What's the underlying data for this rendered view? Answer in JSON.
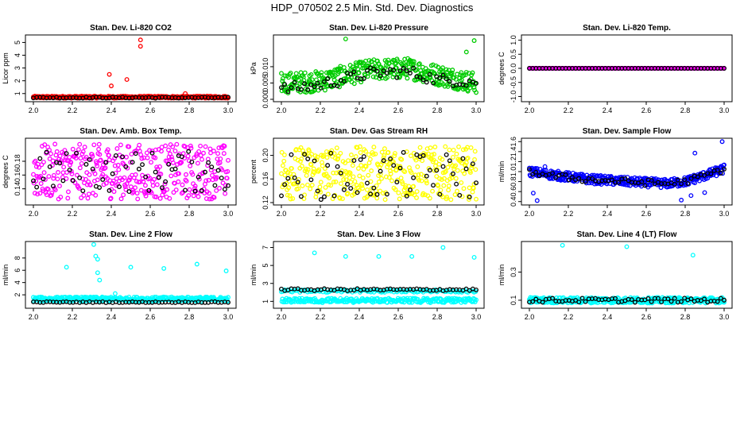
{
  "figure": {
    "title": "HDP_070502  2.5 Min. Std. Dev. Diagnostics"
  },
  "chart_data": [
    {
      "type": "scatter",
      "title": "Stan. Dev. Li-820 CO2",
      "ylabel": "Licor ppm",
      "xlim": [
        2.0,
        3.0
      ],
      "ylim": [
        0.55,
        5.4
      ],
      "xticks": [
        "2.0",
        "2.2",
        "2.4",
        "2.6",
        "2.8",
        "3.0"
      ],
      "yticks": [
        "1",
        "2",
        "3",
        "4",
        "5"
      ],
      "colors": {
        "primary": "#ff0000",
        "secondary": "#000000"
      },
      "primary_base": 0.72,
      "primary_noise": 0.08,
      "secondary_base": 0.68,
      "secondary_noise": 0.04,
      "outliers": [
        {
          "x": 2.39,
          "y": 2.5
        },
        {
          "x": 2.4,
          "y": 1.6
        },
        {
          "x": 2.48,
          "y": 2.1
        },
        {
          "x": 2.55,
          "y": 5.2
        },
        {
          "x": 2.55,
          "y": 4.7
        },
        {
          "x": 2.78,
          "y": 1.0
        }
      ]
    },
    {
      "type": "scatter",
      "title": "Stan. Dev. Li-820 Pressure",
      "ylabel": "kPa",
      "xlim": [
        2.0,
        3.0
      ],
      "ylim": [
        0.0,
        0.019
      ],
      "xticks": [
        "2.0",
        "2.2",
        "2.4",
        "2.6",
        "2.8",
        "3.0"
      ],
      "yticks": [
        "0.000",
        "0.005",
        "0.010"
      ],
      "colors": {
        "primary": "#00cc00",
        "secondary": "#000000"
      },
      "primary_curve": [
        [
          2.0,
          0.005
        ],
        [
          2.2,
          0.0055
        ],
        [
          2.45,
          0.009
        ],
        [
          2.65,
          0.0095
        ],
        [
          2.8,
          0.0075
        ],
        [
          3.0,
          0.005
        ]
      ],
      "primary_noise": 0.0032,
      "secondary_curve": [
        [
          2.0,
          0.003
        ],
        [
          2.2,
          0.0045
        ],
        [
          2.45,
          0.008
        ],
        [
          2.65,
          0.0085
        ],
        [
          2.8,
          0.006
        ],
        [
          3.0,
          0.0055
        ]
      ],
      "secondary_noise": 0.0018,
      "outliers": [
        {
          "x": 2.33,
          "y": 0.0185
        },
        {
          "x": 2.99,
          "y": 0.018
        },
        {
          "x": 2.95,
          "y": 0.0145
        }
      ]
    },
    {
      "type": "scatter",
      "title": "Stan. Dev. Li-820 Temp.",
      "ylabel": "degrees C",
      "xlim": [
        2.0,
        3.0
      ],
      "ylim": [
        -1.1,
        1.1
      ],
      "xticks": [
        "2.0",
        "2.2",
        "2.4",
        "2.6",
        "2.8",
        "3.0"
      ],
      "yticks": [
        "-1.0",
        "-0.5",
        "0.0",
        "0.5",
        "1.0"
      ],
      "colors": {
        "primary": "#ff00ff",
        "secondary": "#000000"
      },
      "primary_base": 0.0,
      "primary_noise": 0.0,
      "secondary_base": 0.0,
      "secondary_noise": 0.0,
      "outliers": []
    },
    {
      "type": "scatter",
      "title": "Stan. Dev. Amb. Box Temp.",
      "ylabel": "degrees C",
      "xlim": [
        2.0,
        3.0
      ],
      "ylim": [
        0.12,
        0.21
      ],
      "xticks": [
        "2.0",
        "2.2",
        "2.4",
        "2.6",
        "2.8",
        "3.0"
      ],
      "yticks": [
        "0.14",
        "0.16",
        "0.18"
      ],
      "colors": {
        "primary": "#ff00ff",
        "secondary": "#000000"
      },
      "primary_base": 0.165,
      "primary_noise": 0.04,
      "secondary_base": 0.165,
      "secondary_noise": 0.03,
      "outliers": []
    },
    {
      "type": "scatter",
      "title": "Stan. Dev. Gas Stream RH",
      "ylabel": "percent",
      "xlim": [
        2.0,
        3.0
      ],
      "ylim": [
        0.12,
        0.225
      ],
      "xticks": [
        "2.0",
        "2.2",
        "2.4",
        "2.6",
        "2.8",
        "3.0"
      ],
      "yticks": [
        "0.12",
        "0.16",
        "0.20"
      ],
      "colors": {
        "primary": "#ffff00",
        "secondary": "#000000"
      },
      "primary_base": 0.17,
      "primary_noise": 0.045,
      "secondary_base": 0.165,
      "secondary_noise": 0.04,
      "outliers": []
    },
    {
      "type": "scatter",
      "title": "Stan. Dev. Sample Flow",
      "ylabel": "ml/min",
      "xlim": [
        2.0,
        3.0
      ],
      "ylim": [
        0.38,
        1.62
      ],
      "xticks": [
        "2.0",
        "2.2",
        "2.4",
        "2.6",
        "2.8",
        "3.0"
      ],
      "yticks": [
        "0.4",
        "0.6",
        "0.8",
        "1.0",
        "1.2",
        "1.4",
        "1.6"
      ],
      "colors": {
        "primary": "#0000ff",
        "secondary": "#000000"
      },
      "primary_curve": [
        [
          2.0,
          1.0
        ],
        [
          2.15,
          0.92
        ],
        [
          2.3,
          0.85
        ],
        [
          2.5,
          0.8
        ],
        [
          2.7,
          0.76
        ],
        [
          2.8,
          0.8
        ],
        [
          2.9,
          0.92
        ],
        [
          3.0,
          1.05
        ]
      ],
      "primary_noise": 0.09,
      "secondary_curve": [
        [
          2.0,
          1.0
        ],
        [
          2.15,
          0.9
        ],
        [
          2.3,
          0.84
        ],
        [
          2.5,
          0.8
        ],
        [
          2.7,
          0.76
        ],
        [
          2.8,
          0.8
        ],
        [
          2.9,
          0.92
        ],
        [
          3.0,
          1.05
        ]
      ],
      "secondary_noise": 0.06,
      "outliers": [
        {
          "x": 2.02,
          "y": 0.57
        },
        {
          "x": 2.04,
          "y": 0.42
        },
        {
          "x": 2.08,
          "y": 1.1
        },
        {
          "x": 2.78,
          "y": 0.43
        },
        {
          "x": 2.83,
          "y": 0.52
        },
        {
          "x": 2.85,
          "y": 1.37
        },
        {
          "x": 2.9,
          "y": 0.58
        },
        {
          "x": 2.99,
          "y": 1.6
        }
      ]
    },
    {
      "type": "scatter",
      "title": "Stan. Dev. Line 2 Flow",
      "ylabel": "ml/min",
      "xlim": [
        2.0,
        3.0
      ],
      "ylim": [
        0.2,
        10.3
      ],
      "xticks": [
        "2.0",
        "2.2",
        "2.4",
        "2.6",
        "2.8",
        "3.0"
      ],
      "yticks": [
        "2",
        "4",
        "6",
        "8"
      ],
      "colors": {
        "primary": "#00ffff",
        "secondary": "#000000"
      },
      "primary_base": 1.3,
      "primary_noise": 0.35,
      "secondary_base": 0.8,
      "secondary_noise": 0.08,
      "outliers": [
        {
          "x": 2.17,
          "y": 6.5
        },
        {
          "x": 2.31,
          "y": 10.2
        },
        {
          "x": 2.32,
          "y": 8.3
        },
        {
          "x": 2.33,
          "y": 7.8
        },
        {
          "x": 2.33,
          "y": 5.6
        },
        {
          "x": 2.34,
          "y": 4.4
        },
        {
          "x": 2.42,
          "y": 2.2
        },
        {
          "x": 2.5,
          "y": 6.5
        },
        {
          "x": 2.67,
          "y": 6.3
        },
        {
          "x": 2.84,
          "y": 7.0
        },
        {
          "x": 2.99,
          "y": 5.9
        }
      ]
    },
    {
      "type": "scatter",
      "title": "Stan. Dev. Line 3 Flow",
      "ylabel": "ml/min",
      "xlim": [
        2.0,
        3.0
      ],
      "ylim": [
        0.5,
        7.4
      ],
      "xticks": [
        "2.0",
        "2.2",
        "2.4",
        "2.6",
        "2.8",
        "3.0"
      ],
      "yticks": [
        "1",
        "3",
        "5",
        "7"
      ],
      "colors": {
        "primary": "#00ffff",
        "secondary": "#000000"
      },
      "primary_base": 1.1,
      "primary_noise": 0.25,
      "secondary_base": 2.3,
      "secondary_noise": 0.12,
      "primary_band2": 2.15,
      "outliers": [
        {
          "x": 2.17,
          "y": 6.4
        },
        {
          "x": 2.33,
          "y": 6.0
        },
        {
          "x": 2.5,
          "y": 6.0
        },
        {
          "x": 2.67,
          "y": 6.0
        },
        {
          "x": 2.83,
          "y": 7.0
        },
        {
          "x": 2.99,
          "y": 5.9
        }
      ]
    },
    {
      "type": "scatter",
      "title": "Stan. Dev. Line 4 (LT) Flow",
      "ylabel": "ml/min",
      "xlim": [
        2.0,
        3.0
      ],
      "ylim": [
        0.06,
        0.5
      ],
      "xticks": [
        "2.0",
        "2.2",
        "2.4",
        "2.6",
        "2.8",
        "3.0"
      ],
      "yticks": [
        "0.1",
        "0.3"
      ],
      "colors": {
        "primary": "#00ffff",
        "secondary": "#000000"
      },
      "primary_base": 0.1,
      "primary_noise": 0.02,
      "secondary_base": 0.1,
      "secondary_noise": 0.015,
      "outliers": [
        {
          "x": 2.17,
          "y": 0.49
        },
        {
          "x": 2.5,
          "y": 0.48
        },
        {
          "x": 2.84,
          "y": 0.42
        }
      ]
    }
  ]
}
